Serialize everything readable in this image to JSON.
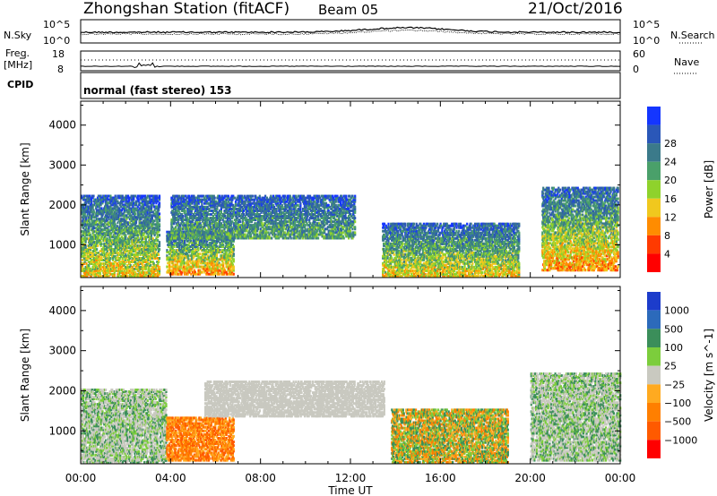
{
  "header": {
    "station": "Zhongshan Station (fitACF)",
    "beam": "Beam 05",
    "date": "21/Oct/2016"
  },
  "sky_panel": {
    "left_label": "N.Sky",
    "right_label": "N.Search",
    "left_top_tick": "10^5",
    "left_bottom_tick": "10^0",
    "right_top_tick": "10^5",
    "right_bottom_tick": "10^0"
  },
  "freq_panel": {
    "left_label_line1": "Freq.",
    "left_label_line2": "[MHz]",
    "left_ticks": [
      "18",
      "8"
    ],
    "right_label": "Nave",
    "right_ticks": [
      "60",
      "0"
    ]
  },
  "cpid": {
    "label": "CPID",
    "mode": "normal (fast stereo) 153"
  },
  "chart_data": [
    {
      "type": "heatmap",
      "name": "Power",
      "ylabel": "Slant Range [km]",
      "xlabel": "Time UT",
      "xlim_hours": [
        0,
        24
      ],
      "ylim_km": [
        180,
        4600
      ],
      "y_ticks": [
        1000,
        2000,
        3000,
        4000
      ],
      "colorbar": {
        "label": "Power [dB]",
        "ticks": [
          "4",
          "8",
          "12",
          "16",
          "20",
          "24",
          "28"
        ],
        "colors": [
          "#1436ff",
          "#2a57b8",
          "#3b7a8a",
          "#4aa06a",
          "#8fd22c",
          "#f0c81e",
          "#ff8c00",
          "#ff3a00",
          "#ff0000"
        ]
      },
      "scatter_regions": [
        {
          "t0": 0.0,
          "t1": 3.5,
          "r0": 250,
          "r1": 2300,
          "intensity": "moderate-high"
        },
        {
          "t0": 3.8,
          "t1": 6.8,
          "r0": 300,
          "r1": 1400,
          "intensity": "high"
        },
        {
          "t0": 4.0,
          "t1": 12.2,
          "r0": 1200,
          "r1": 2300,
          "intensity": "low-moderate"
        },
        {
          "t0": 13.4,
          "t1": 19.5,
          "r0": 250,
          "r1": 1600,
          "intensity": "moderate-high"
        },
        {
          "t0": 20.5,
          "t1": 23.9,
          "r0": 400,
          "r1": 2500,
          "intensity": "high"
        }
      ]
    },
    {
      "type": "heatmap",
      "name": "Velocity",
      "ylabel": "Slant Range [km]",
      "xlabel": "Time UT",
      "xlim_hours": [
        0,
        24
      ],
      "ylim_km": [
        180,
        4600
      ],
      "y_ticks": [
        1000,
        2000,
        3000,
        4000
      ],
      "colorbar": {
        "label": "Velocity [m s^-1]",
        "ticks": [
          "1000",
          "500",
          "100",
          "25",
          "−25",
          "−100",
          "−500",
          "−1000"
        ],
        "colors": [
          "#1c3ccb",
          "#2c6abb",
          "#3b8e5a",
          "#7ccd3c",
          "#c9c9c0",
          "#ffaa20",
          "#ff7f00",
          "#ff5a00",
          "#ff0000"
        ]
      },
      "scatter_regions": [
        {
          "t0": 0.0,
          "t1": 3.8,
          "r0": 250,
          "r1": 2100,
          "velocity": "mixed gray/green"
        },
        {
          "t0": 3.8,
          "t1": 6.8,
          "r0": 300,
          "r1": 1400,
          "velocity": "negative (orange)"
        },
        {
          "t0": 5.5,
          "t1": 13.5,
          "r0": 1400,
          "r1": 2300,
          "velocity": "near zero (gray)"
        },
        {
          "t0": 13.8,
          "t1": 19.0,
          "r0": 250,
          "r1": 1600,
          "velocity": "mixed green/orange"
        },
        {
          "t0": 20.0,
          "t1": 24.0,
          "r0": 300,
          "r1": 2500,
          "velocity": "mixed gray/green"
        }
      ]
    }
  ],
  "x_axis": {
    "tick_labels": [
      "00:00",
      "04:00",
      "08:00",
      "12:00",
      "16:00",
      "20:00",
      "00:00"
    ],
    "label": "Time UT"
  }
}
